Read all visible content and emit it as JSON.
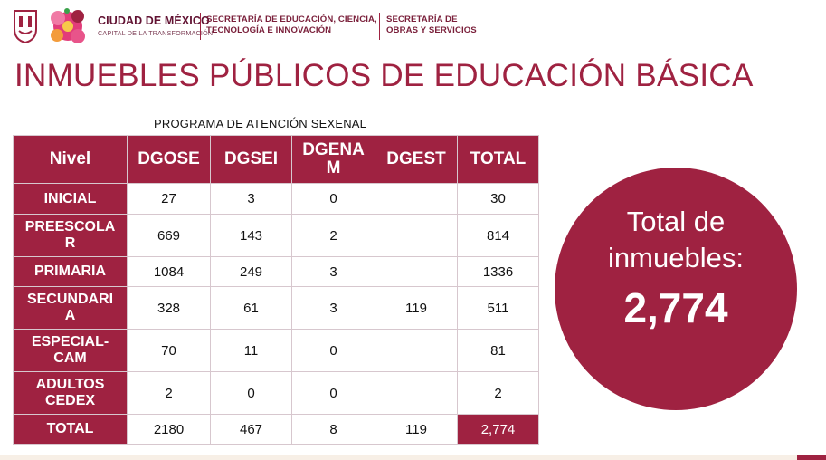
{
  "header": {
    "brand_title": "CIUDAD DE MÉXICO",
    "brand_subtitle": "CAPITAL DE LA TRANSFORMACIÓN",
    "org1_line1": "SECRETARÍA DE EDUCACIÓN, CIENCIA,",
    "org1_line2": "TECNOLOGÍA E INNOVACIÓN",
    "org2_line1": "SECRETARÍA DE",
    "org2_line2": "OBRAS Y SERVICIOS",
    "colors": {
      "primary": "#9f2241",
      "dark": "#611232"
    }
  },
  "title": "INMUEBLES PÚBLICOS DE EDUCACIÓN BÁSICA",
  "table": {
    "caption": "PROGRAMA DE ATENCIÓN SEXENAL",
    "headers": [
      "Nivel",
      "DGOSE",
      "DGSEI",
      "DGENAM",
      "DGEST",
      "TOTAL"
    ],
    "header_dgenam_l1": "DGENA",
    "header_dgenam_l2": "M",
    "rows": [
      {
        "l1": "INICIAL",
        "l2": "",
        "dgose": "27",
        "dgsei": "3",
        "dgenam": "0",
        "dgest": "",
        "total": "30"
      },
      {
        "l1": "PREESCOLA",
        "l2": "R",
        "dgose": "669",
        "dgsei": "143",
        "dgenam": "2",
        "dgest": "",
        "total": "814"
      },
      {
        "l1": "PRIMARIA",
        "l2": "",
        "dgose": "1084",
        "dgsei": "249",
        "dgenam": "3",
        "dgest": "",
        "total": "1336"
      },
      {
        "l1": "SECUNDARI",
        "l2": "A",
        "dgose": "328",
        "dgsei": "61",
        "dgenam": "3",
        "dgest": "119",
        "total": "511"
      },
      {
        "l1": "ESPECIAL-",
        "l2": "CAM",
        "dgose": "70",
        "dgsei": "11",
        "dgenam": "0",
        "dgest": "",
        "total": "81"
      },
      {
        "l1": "ADULTOS",
        "l2": "CEDEX",
        "dgose": "2",
        "dgsei": "0",
        "dgenam": "0",
        "dgest": "",
        "total": "2"
      },
      {
        "l1": "TOTAL",
        "l2": "",
        "dgose": "2180",
        "dgsei": "467",
        "dgenam": "8",
        "dgest": "119",
        "total": "2,774"
      }
    ]
  },
  "summary": {
    "label_l1": "Total de",
    "label_l2": "inmuebles:",
    "value": "2,774"
  }
}
